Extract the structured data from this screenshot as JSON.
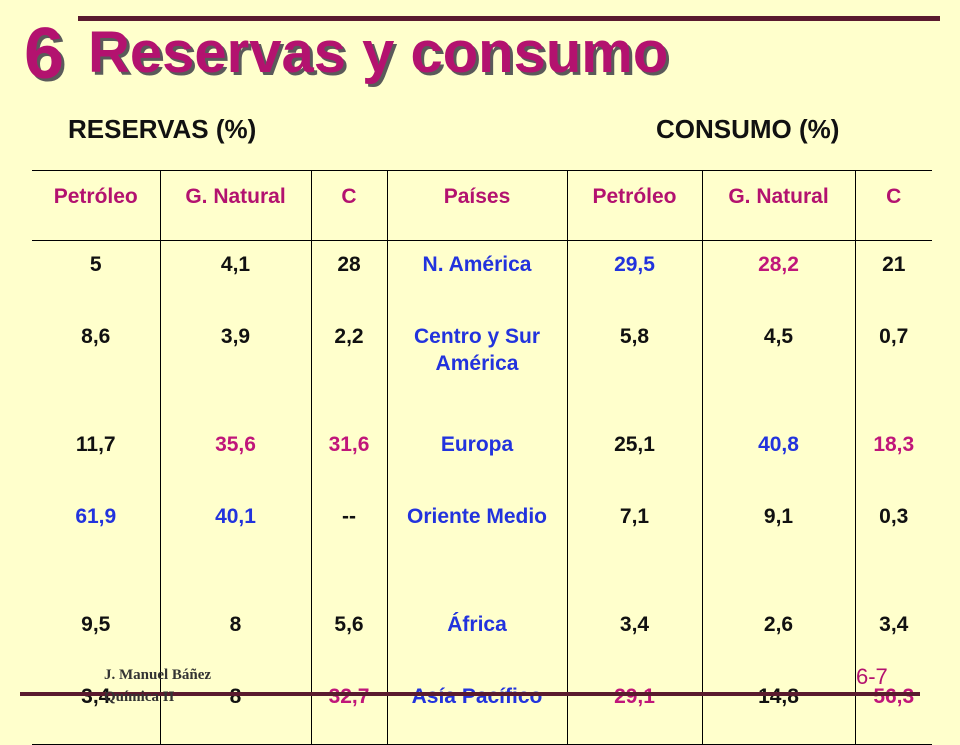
{
  "slide": {
    "number": "6",
    "title": "Reservas y consumo",
    "heading_left": "RESERVAS (%)",
    "heading_right": "CONSUMO (%)",
    "author_line1": "J. Manuel Báñez",
    "author_line2": "Química II",
    "page_label": "6-7"
  },
  "colors": {
    "title": "#B3126F",
    "background": "#FFFFCC",
    "magenta_value": "#C0167A",
    "blue_value": "#2233DD",
    "rule": "#5A1A2E"
  },
  "table": {
    "headers": [
      "Petróleo",
      "G. Natural",
      "C",
      "Países",
      "Petróleo",
      "G. Natural",
      "C"
    ],
    "rows": [
      {
        "cells": [
          {
            "text": "5",
            "color": "black"
          },
          {
            "text": "4,1",
            "color": "black"
          },
          {
            "text": "28",
            "color": "black"
          },
          {
            "text": "N. América",
            "color": "blue"
          },
          {
            "text": "29,5",
            "color": "blue"
          },
          {
            "text": "28,2",
            "color": "magenta"
          },
          {
            "text": "21",
            "color": "black"
          }
        ]
      },
      {
        "cells": [
          {
            "text": "8,6",
            "color": "black"
          },
          {
            "text": "3,9",
            "color": "black"
          },
          {
            "text": "2,2",
            "color": "black"
          },
          {
            "text": "Centro y Sur América",
            "color": "blue"
          },
          {
            "text": "5,8",
            "color": "black"
          },
          {
            "text": "4,5",
            "color": "black"
          },
          {
            "text": "0,7",
            "color": "black"
          }
        ]
      },
      {
        "cells": [
          {
            "text": "11,7",
            "color": "black"
          },
          {
            "text": "35,6",
            "color": "magenta"
          },
          {
            "text": "31,6",
            "color": "magenta"
          },
          {
            "text": "Europa",
            "color": "blue"
          },
          {
            "text": "25,1",
            "color": "black"
          },
          {
            "text": "40,8",
            "color": "blue"
          },
          {
            "text": "18,3",
            "color": "magenta"
          }
        ]
      },
      {
        "cells": [
          {
            "text": "61,9",
            "color": "blue"
          },
          {
            "text": "40,1",
            "color": "blue"
          },
          {
            "text": "--",
            "color": "black"
          },
          {
            "text": "Oriente Medio",
            "color": "blue"
          },
          {
            "text": "7,1",
            "color": "black"
          },
          {
            "text": "9,1",
            "color": "black"
          },
          {
            "text": "0,3",
            "color": "black"
          }
        ]
      },
      {
        "cells": [
          {
            "text": "9,5",
            "color": "black"
          },
          {
            "text": "8",
            "color": "black"
          },
          {
            "text": "5,6",
            "color": "black"
          },
          {
            "text": "África",
            "color": "blue"
          },
          {
            "text": "3,4",
            "color": "black"
          },
          {
            "text": "2,6",
            "color": "black"
          },
          {
            "text": "3,4",
            "color": "black"
          }
        ]
      },
      {
        "cells": [
          {
            "text": "3,4",
            "color": "black"
          },
          {
            "text": "8",
            "color": "black"
          },
          {
            "text": "32,7",
            "color": "magenta"
          },
          {
            "text": "Asía Pacífico",
            "color": "blue"
          },
          {
            "text": "29,1",
            "color": "magenta"
          },
          {
            "text": "14,8",
            "color": "black"
          },
          {
            "text": "56,3",
            "color": "magenta"
          }
        ]
      }
    ]
  }
}
